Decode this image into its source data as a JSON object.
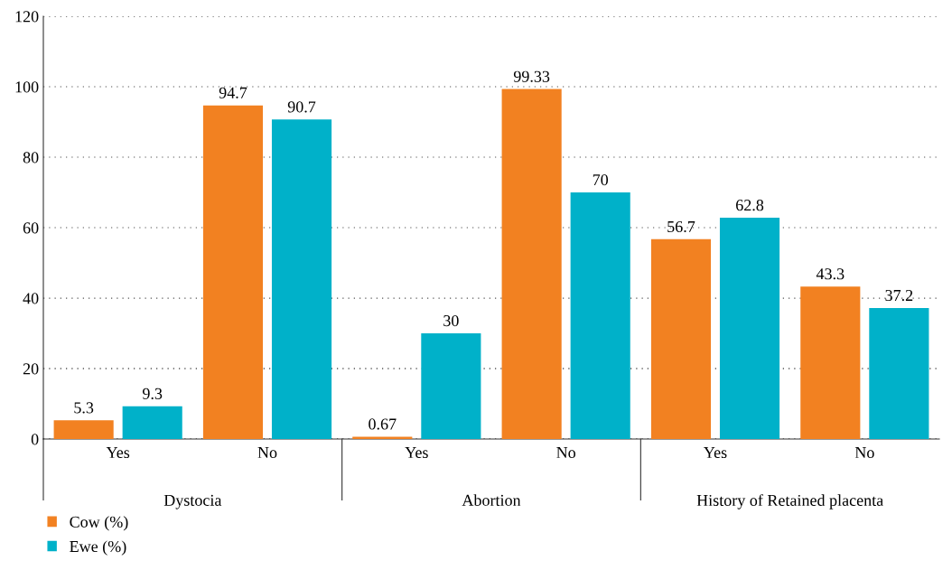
{
  "chart_data": {
    "type": "bar",
    "categories": [
      "Yes",
      "No",
      "Yes",
      "No",
      "Yes",
      "No"
    ],
    "series": [
      {
        "name": "Cow (%)",
        "color": "#f28121",
        "values": [
          5.3,
          94.7,
          0.67,
          99.33,
          56.7,
          43.3
        ]
      },
      {
        "name": "Ewe (%)",
        "color": "#00b1c9",
        "values": [
          9.3,
          90.7,
          30,
          70,
          62.8,
          37.2
        ]
      }
    ],
    "annotations": [
      "Dystocia",
      "Abortion",
      "History of Retained placenta"
    ],
    "ylim": [
      0,
      120
    ],
    "yticks": [
      0,
      20,
      40,
      60,
      80,
      100,
      120
    ],
    "grid": "y",
    "legend": "bottom left",
    "data_labels": true
  }
}
